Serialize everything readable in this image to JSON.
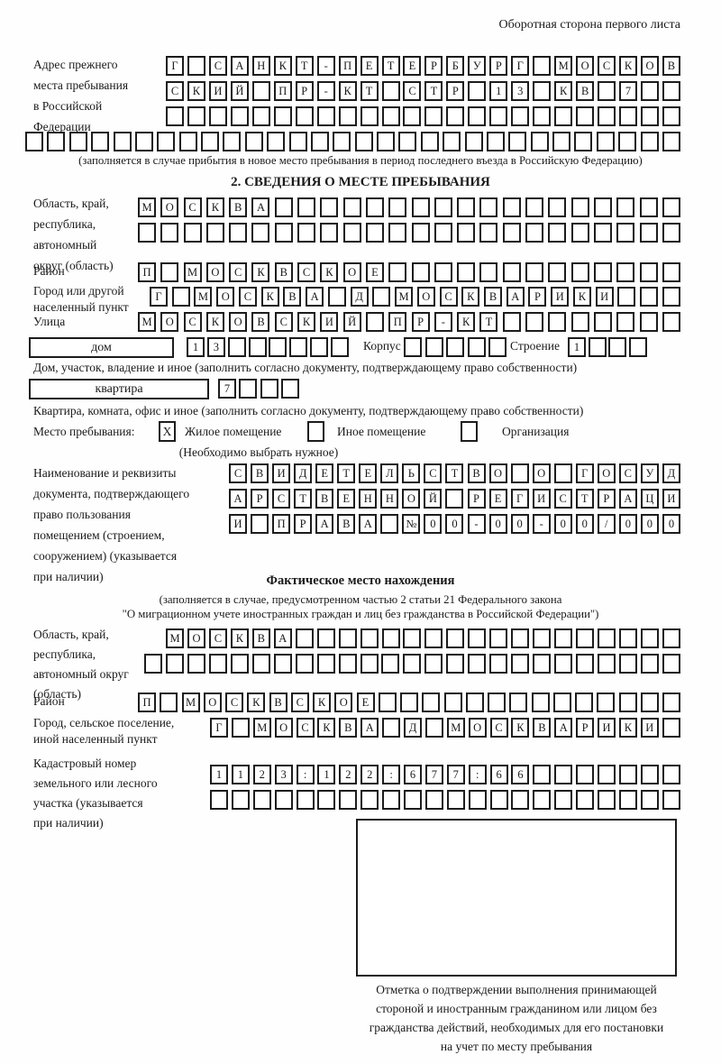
{
  "page": {
    "header_note": "Оборотная сторона первого листа"
  },
  "prev_address": {
    "label_lines": [
      "Адрес прежнего",
      "места пребывания",
      "в Российской",
      "Федерации"
    ],
    "rows": [
      {
        "cells": [
          "Г",
          "",
          "С",
          "А",
          "Н",
          "К",
          "Т",
          "-",
          "П",
          "Е",
          "Т",
          "Е",
          "Р",
          "Б",
          "У",
          "Р",
          "Г",
          "",
          "М",
          "О",
          "С",
          "К",
          "О",
          "В"
        ]
      },
      {
        "cells": [
          "С",
          "К",
          "И",
          "Й",
          "",
          "П",
          "Р",
          "-",
          "К",
          "Т",
          "",
          "С",
          "Т",
          "Р",
          "",
          "1",
          "3",
          "",
          "К",
          "В",
          "",
          "7",
          "",
          ""
        ]
      },
      {
        "cells": [
          "",
          "",
          "",
          "",
          "",
          "",
          "",
          "",
          "",
          "",
          "",
          "",
          "",
          "",
          "",
          "",
          "",
          "",
          "",
          "",
          "",
          "",
          "",
          ""
        ]
      },
      {
        "cells": [
          "",
          "",
          "",
          "",
          "",
          "",
          "",
          "",
          "",
          "",
          "",
          "",
          "",
          "",
          "",
          "",
          "",
          "",
          "",
          "",
          "",
          "",
          "",
          "",
          "",
          "",
          "",
          "",
          "",
          ""
        ]
      }
    ],
    "note": "(заполняется в случае прибытия в новое место пребывания в период последнего въезда в Российскую Федерацию)"
  },
  "section2": {
    "title": "2. СВЕДЕНИЯ О МЕСТЕ ПРЕБЫВАНИЯ",
    "region": {
      "label_lines": [
        "Область, край,",
        "республика,",
        "автономный",
        "округ (область)"
      ],
      "row_a": [
        "М",
        "О",
        "С",
        "К",
        "В",
        "А",
        "",
        "",
        "",
        "",
        "",
        "",
        "",
        "",
        "",
        "",
        "",
        "",
        "",
        "",
        "",
        "",
        "",
        ""
      ],
      "row_b": [
        "",
        "",
        "",
        "",
        "",
        "",
        "",
        "",
        "",
        "",
        "",
        "",
        "",
        "",
        "",
        "",
        "",
        "",
        "",
        "",
        "",
        "",
        "",
        ""
      ]
    },
    "district": {
      "label": "Район",
      "cells": [
        "П",
        "",
        "М",
        "О",
        "С",
        "К",
        "В",
        "С",
        "К",
        "О",
        "Е",
        "",
        "",
        "",
        "",
        "",
        "",
        "",
        "",
        "",
        "",
        "",
        "",
        ""
      ]
    },
    "city": {
      "label_lines": [
        "Город или другой",
        "населенный пункт"
      ],
      "cells": [
        "Г",
        "",
        "М",
        "О",
        "С",
        "К",
        "В",
        "А",
        "",
        "Д",
        "",
        "М",
        "О",
        "С",
        "К",
        "В",
        "А",
        "Р",
        "И",
        "К",
        "И",
        "",
        "",
        ""
      ]
    },
    "street": {
      "label": "Улица",
      "cells": [
        "М",
        "О",
        "С",
        "К",
        "О",
        "В",
        "С",
        "К",
        "И",
        "Й",
        "",
        "П",
        "Р",
        "-",
        "К",
        "Т",
        "",
        "",
        "",
        "",
        "",
        "",
        "",
        ""
      ]
    },
    "house_row": {
      "house_label": "дом",
      "house_cells": [
        "1",
        "3",
        "",
        "",
        "",
        "",
        "",
        ""
      ],
      "korpus_label": "Корпус",
      "korpus_cells": [
        "",
        "",
        "",
        "",
        ""
      ],
      "stroenie_label": "Строение",
      "stroenie_cells": [
        "1",
        "",
        "",
        ""
      ]
    },
    "house_note": "Дом, участок, владение и иное (заполнить согласно документу, подтверждающему право собственности)",
    "apartment_row": {
      "label": "квартира",
      "cells": [
        "7",
        "",
        "",
        ""
      ]
    },
    "apartment_note": "Квартира, комната, офис и иное (заполнить согласно документу, подтверждающему право собственности)",
    "stay_type": {
      "label": "Место пребывания:",
      "options": [
        {
          "label": "Жилое помещение",
          "mark": "X"
        },
        {
          "label": "Иное помещение",
          "mark": ""
        },
        {
          "label": "Организация",
          "mark": ""
        }
      ],
      "note": "(Необходимо выбрать нужное)"
    },
    "document": {
      "label_lines": [
        "Наименование и реквизиты",
        "документа, подтверждающего",
        "право пользования",
        "помещением (строением,",
        "сооружением) (указывается",
        "при наличии)"
      ],
      "rows": [
        {
          "cells": [
            "С",
            "В",
            "И",
            "Д",
            "Е",
            "Т",
            "Е",
            "Л",
            "Ь",
            "С",
            "Т",
            "В",
            "О",
            "",
            "О",
            "",
            "Г",
            "О",
            "С",
            "У",
            "Д"
          ]
        },
        {
          "cells": [
            "А",
            "Р",
            "С",
            "Т",
            "В",
            "Е",
            "Н",
            "Н",
            "О",
            "Й",
            "",
            "Р",
            "Е",
            "Г",
            "И",
            "С",
            "Т",
            "Р",
            "А",
            "Ц",
            "И"
          ]
        },
        {
          "cells": [
            "И",
            "",
            "П",
            "Р",
            "А",
            "В",
            "А",
            "",
            "№",
            "0",
            "0",
            "-",
            "0",
            "0",
            "-",
            "0",
            "0",
            "/",
            "0",
            "0",
            "0"
          ]
        }
      ]
    }
  },
  "actual_location": {
    "title": "Фактическое место нахождения",
    "note_lines": [
      "(заполняется в случае, предусмотренном частью 2 статьи 21 Федерального закона",
      "\"О миграционном учете иностранных граждан и лиц без гражданства в Российской Федерации\")"
    ],
    "region": {
      "label_lines": [
        "Область, край,",
        "республика,",
        "автономный округ",
        "(область)"
      ],
      "row_a": [
        "М",
        "О",
        "С",
        "К",
        "В",
        "А",
        "",
        "",
        "",
        "",
        "",
        "",
        "",
        "",
        "",
        "",
        "",
        "",
        "",
        "",
        "",
        "",
        "",
        ""
      ],
      "row_b": [
        "",
        "",
        "",
        "",
        "",
        "",
        "",
        "",
        "",
        "",
        "",
        "",
        "",
        "",
        "",
        "",
        "",
        "",
        "",
        "",
        "",
        "",
        "",
        "",
        ""
      ]
    },
    "district": {
      "label": "Район",
      "cells": [
        "П",
        "",
        "М",
        "О",
        "С",
        "К",
        "В",
        "С",
        "К",
        "О",
        "Е",
        "",
        "",
        "",
        "",
        "",
        "",
        "",
        "",
        "",
        "",
        "",
        "",
        "",
        ""
      ]
    },
    "city": {
      "label_lines": [
        "Город, сельское поселение,",
        "иной населенный пункт"
      ],
      "cells": [
        "Г",
        "",
        "М",
        "О",
        "С",
        "К",
        "В",
        "А",
        "",
        "Д",
        "",
        "М",
        "О",
        "С",
        "К",
        "В",
        "А",
        "Р",
        "И",
        "К",
        "И",
        ""
      ]
    },
    "cadastre": {
      "label_lines": [
        "Кадастровый номер",
        "земельного или лесного",
        "участка (указывается",
        "при наличии)"
      ],
      "rows": [
        {
          "cells": [
            "1",
            "1",
            "2",
            "3",
            ":",
            "1",
            "2",
            "2",
            ":",
            "6",
            "7",
            "7",
            ":",
            "6",
            "6",
            "",
            "",
            "",
            "",
            "",
            "",
            ""
          ]
        },
        {
          "cells": [
            "",
            "",
            "",
            "",
            "",
            "",
            "",
            "",
            "",
            "",
            "",
            "",
            "",
            "",
            "",
            "",
            "",
            "",
            "",
            "",
            "",
            ""
          ]
        }
      ]
    },
    "stamp_caption_lines": [
      "Отметка о подтверждении выполнения принимающей",
      "стороной и иностранным гражданином или лицом без",
      "гражданства действий, необходимых для его постановки",
      "на учет по месту пребывания"
    ]
  }
}
